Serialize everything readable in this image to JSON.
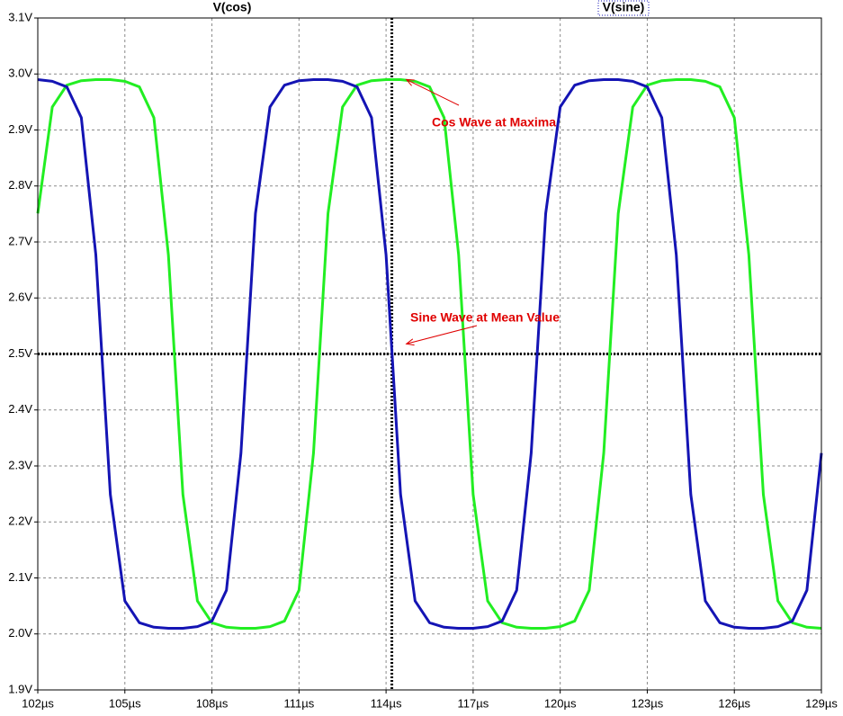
{
  "chart_data": {
    "type": "line",
    "x": [
      102,
      102.5,
      103,
      103.5,
      104,
      104.5,
      105,
      105.5,
      106,
      106.5,
      107,
      107.5,
      108,
      108.5,
      109,
      109.5,
      110,
      110.5,
      111,
      111.5,
      112,
      112.5,
      113,
      113.5,
      114,
      114.5,
      115,
      115.5,
      116,
      116.5,
      117,
      117.5,
      118,
      118.5,
      119,
      119.5,
      120,
      120.5,
      121,
      121.5,
      122,
      122.5,
      123,
      123.5,
      124,
      124.5,
      125,
      125.5,
      126,
      126.5,
      127,
      127.5,
      128,
      128.5,
      129
    ],
    "series": [
      {
        "name": "V(cos)",
        "color": "#22ee22",
        "values": [
          2.751,
          2.941,
          2.98,
          2.988,
          2.99,
          2.99,
          2.987,
          2.977,
          2.922,
          2.677,
          2.249,
          2.059,
          2.02,
          2.012,
          2.01,
          2.01,
          2.013,
          2.023,
          2.078,
          2.323,
          2.751,
          2.941,
          2.98,
          2.988,
          2.99,
          2.99,
          2.987,
          2.977,
          2.922,
          2.677,
          2.249,
          2.059,
          2.02,
          2.012,
          2.01,
          2.01,
          2.013,
          2.023,
          2.078,
          2.323,
          2.751,
          2.941,
          2.98,
          2.988,
          2.99,
          2.99,
          2.987,
          2.977,
          2.922,
          2.677,
          2.249,
          2.059,
          2.02,
          2.012,
          2.01
        ]
      },
      {
        "name": "V(sine)",
        "color": "#1414b4",
        "values": [
          2.99,
          2.987,
          2.977,
          2.922,
          2.677,
          2.249,
          2.059,
          2.02,
          2.012,
          2.01,
          2.01,
          2.013,
          2.023,
          2.078,
          2.323,
          2.751,
          2.941,
          2.98,
          2.988,
          2.99,
          2.99,
          2.987,
          2.977,
          2.922,
          2.677,
          2.249,
          2.059,
          2.02,
          2.012,
          2.01,
          2.01,
          2.013,
          2.023,
          2.078,
          2.323,
          2.751,
          2.941,
          2.98,
          2.988,
          2.99,
          2.99,
          2.987,
          2.977,
          2.922,
          2.677,
          2.249,
          2.059,
          2.02,
          2.012,
          2.01,
          2.01,
          2.013,
          2.023,
          2.078,
          2.323
        ]
      }
    ],
    "xlim": [
      102,
      129
    ],
    "xticks": [
      {
        "value": 102,
        "label": "102µs"
      },
      {
        "value": 105,
        "label": "105µs"
      },
      {
        "value": 108,
        "label": "108µs"
      },
      {
        "value": 111,
        "label": "111µs"
      },
      {
        "value": 114,
        "label": "114µs"
      },
      {
        "value": 117,
        "label": "117µs"
      },
      {
        "value": 120,
        "label": "120µs"
      },
      {
        "value": 123,
        "label": "123µs"
      },
      {
        "value": 126,
        "label": "126µs"
      },
      {
        "value": 129,
        "label": "129µs"
      }
    ],
    "ylim": [
      1.9,
      3.1
    ],
    "yticks": [
      {
        "value": 1.9,
        "label": "1.9V"
      },
      {
        "value": 2.0,
        "label": "2.0V"
      },
      {
        "value": 2.1,
        "label": "2.1V"
      },
      {
        "value": 2.2,
        "label": "2.2V"
      },
      {
        "value": 2.3,
        "label": "2.3V"
      },
      {
        "value": 2.4,
        "label": "2.4V"
      },
      {
        "value": 2.5,
        "label": "2.5V"
      },
      {
        "value": 2.6,
        "label": "2.6V"
      },
      {
        "value": 2.7,
        "label": "2.7V"
      },
      {
        "value": 2.8,
        "label": "2.8V"
      },
      {
        "value": 2.9,
        "label": "2.9V"
      },
      {
        "value": 3.0,
        "label": "3.0V"
      },
      {
        "value": 3.1,
        "label": "3.1V"
      }
    ],
    "grid": true,
    "cursors": {
      "x": 114.2,
      "y": 2.5
    },
    "annotations": [
      {
        "text": "Cos Wave at Maxima",
        "x": 114.7,
        "y": 2.99
      },
      {
        "text": "Sine Wave at Mean Value",
        "x": 114.7,
        "y": 2.518
      }
    ]
  }
}
